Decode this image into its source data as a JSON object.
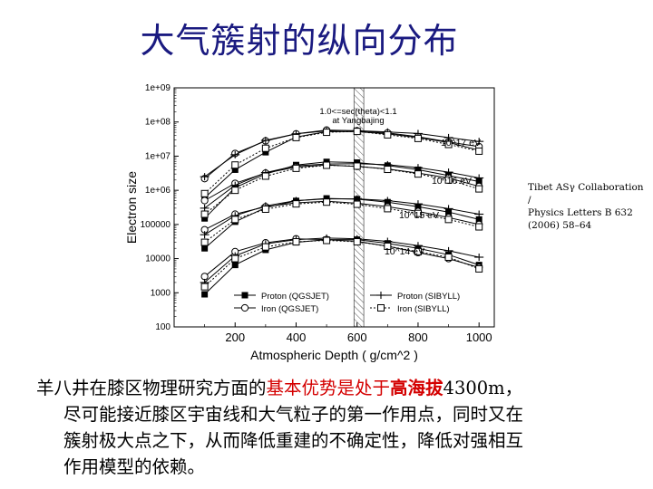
{
  "slide": {
    "title": "大气簇射的纵向分布",
    "citation_lines": [
      "Tibet ASγ Collaboration /",
      "Physics Letters B 632",
      "(2006) 58–64"
    ],
    "paragraph": {
      "line1_prefix": "羊八井在膝区物理研究方面的",
      "line1_red": "基本优势是处于",
      "line1_red_bold": "高海拔",
      "line1_suffix": "4300m，",
      "line2": "尽可能接近膝区宇宙线和大气粒子的第一作用点，同时又在",
      "line3": "簇射极大点之下，从而降低重建的不确定性，降低对强相互",
      "line4": "作用模型的依赖。"
    }
  },
  "chart_data": {
    "type": "line",
    "title": "",
    "xlabel": "Atmospheric Depth ( g/cm^2 )",
    "ylabel": "Electron size",
    "xlim": [
      0,
      1050
    ],
    "ylim": [
      100,
      1000000000
    ],
    "yscale": "log",
    "x_ticks": [
      200,
      400,
      600,
      800,
      1000
    ],
    "y_ticks": [
      {
        "v": 1000000000.0,
        "label": "1e+09"
      },
      {
        "v": 100000000.0,
        "label": "1e+08"
      },
      {
        "v": 10000000.0,
        "label": "1e+07"
      },
      {
        "v": 1000000.0,
        "label": "1e+06"
      },
      {
        "v": 100000.0,
        "label": "100000"
      },
      {
        "v": 10000.0,
        "label": "10000"
      },
      {
        "v": 1000.0,
        "label": "1000"
      },
      {
        "v": 100.0,
        "label": "100"
      }
    ],
    "annotations": {
      "cut_line1": "1.0<=sec(theta)<1.1",
      "cut_line2": "at Yangbajing",
      "energy_labels": [
        "10^17 eV",
        "10^16 eV",
        "10^15 eV",
        "10^14 eV"
      ]
    },
    "observation_level": {
      "x": 606,
      "band": [
        590,
        622
      ]
    },
    "x": [
      100,
      200,
      300,
      400,
      500,
      600,
      700,
      800,
      900,
      1000
    ],
    "series": [
      {
        "name": "Proton (QGSJET)",
        "style": "filled-square-solid",
        "group": 0,
        "values": [
          600000.0,
          4000000.0,
          13000000.0,
          36000000.0,
          52000000.0,
          52000000.0,
          45000000.0,
          35000000.0,
          25000000.0,
          15000000.0
        ]
      },
      {
        "name": "Iron (QGSJET)",
        "style": "open-circle-solid",
        "group": 0,
        "values": [
          2200000.0,
          12000000.0,
          28000000.0,
          45000000.0,
          58000000.0,
          55000000.0,
          48000000.0,
          37000000.0,
          26000000.0,
          19000000.0
        ]
      },
      {
        "name": "Proton (SIBYLL)",
        "style": "plus-solid",
        "group": 0,
        "values": [
          2500000.0,
          11000000.0,
          29000000.0,
          45000000.0,
          55000000.0,
          56000000.0,
          51000000.0,
          46000000.0,
          35000000.0,
          27000000.0
        ]
      },
      {
        "name": "Iron (SIBYLL)",
        "style": "open-square-dotted",
        "group": 0,
        "values": [
          800000.0,
          5500000.0,
          17000000.0,
          35000000.0,
          50000000.0,
          53000000.0,
          42000000.0,
          33000000.0,
          22000000.0,
          14000000.0
        ]
      },
      {
        "name": "Proton (QGSJET)",
        "style": "filled-square-solid",
        "group": 1,
        "values": [
          150000.0,
          1200000.0,
          3000000.0,
          5500000.0,
          6800000.0,
          6500000.0,
          5300000.0,
          4000000.0,
          2700000.0,
          1800000.0
        ]
      },
      {
        "name": "Iron (QGSJET)",
        "style": "open-circle-solid",
        "group": 1,
        "values": [
          500000.0,
          1600000.0,
          3200000.0,
          4800000.0,
          5500000.0,
          5000000.0,
          4200000.0,
          3200000.0,
          2300000.0,
          1300000.0
        ]
      },
      {
        "name": "Proton (SIBYLL)",
        "style": "plus-solid",
        "group": 1,
        "values": [
          300000.0,
          1400000.0,
          3300000.0,
          5200000.0,
          5900000.0,
          6000000.0,
          5600000.0,
          4600000.0,
          3400000.0,
          2300000.0
        ]
      },
      {
        "name": "Iron (SIBYLL)",
        "style": "open-square-dotted",
        "group": 1,
        "values": [
          200000.0,
          1000000.0,
          2600000.0,
          4400000.0,
          5400000.0,
          5100000.0,
          4100000.0,
          3000000.0,
          2000000.0,
          1100000.0
        ]
      },
      {
        "name": "Proton (QGSJET)",
        "style": "filled-square-solid",
        "group": 2,
        "values": [
          20000.0,
          120000.0,
          310000.0,
          490000.0,
          580000.0,
          550000.0,
          450000.0,
          330000.0,
          230000.0,
          140000.0
        ]
      },
      {
        "name": "Iron (QGSJET)",
        "style": "open-circle-solid",
        "group": 2,
        "values": [
          70000.0,
          200000.0,
          330000.0,
          430000.0,
          480000.0,
          420000.0,
          330000.0,
          240000.0,
          160000.0,
          100000.0
        ]
      },
      {
        "name": "Proton (SIBYLL)",
        "style": "plus-solid",
        "group": 2,
        "values": [
          50000.0,
          180000.0,
          350000.0,
          500000.0,
          560000.0,
          560000.0,
          500000.0,
          400000.0,
          290000.0,
          200000.0
        ]
      },
      {
        "name": "Iron (SIBYLL)",
        "style": "open-square-dotted",
        "group": 2,
        "values": [
          30000.0,
          140000.0,
          280000.0,
          400000.0,
          450000.0,
          390000.0,
          290000.0,
          210000.0,
          140000.0,
          85000.0
        ]
      },
      {
        "name": "Proton (QGSJET)",
        "style": "filled-square-solid",
        "group": 3,
        "values": [
          900,
          6500,
          18000.0,
          30000.0,
          36000.0,
          36000.0,
          28000.0,
          20000.0,
          13000.0,
          6500
        ]
      },
      {
        "name": "Iron (QGSJET)",
        "style": "open-circle-solid",
        "group": 3,
        "values": [
          3000,
          16000.0,
          29000.0,
          38000.0,
          36000.0,
          32000.0,
          23000.0,
          15000.0,
          10000.0,
          5500
        ]
      },
      {
        "name": "Proton (SIBYLL)",
        "style": "plus-solid",
        "group": 3,
        "values": [
          2000,
          12000.0,
          27000.0,
          36000.0,
          40000.0,
          38000.0,
          32000.0,
          24000.0,
          17000.0,
          11000.0
        ]
      },
      {
        "name": "Iron (SIBYLL)",
        "style": "open-square-dotted",
        "group": 3,
        "values": [
          1500,
          10000.0,
          22000.0,
          31000.0,
          34000.0,
          31000.0,
          23000.0,
          16000.0,
          11000.0,
          5000
        ]
      }
    ],
    "legend": {
      "placement": "bottom",
      "entries": [
        "Proton (QGSJET)",
        "Iron (QGSJET)",
        "Proton (SIBYLL)",
        "Iron (SIBYLL)"
      ]
    }
  }
}
